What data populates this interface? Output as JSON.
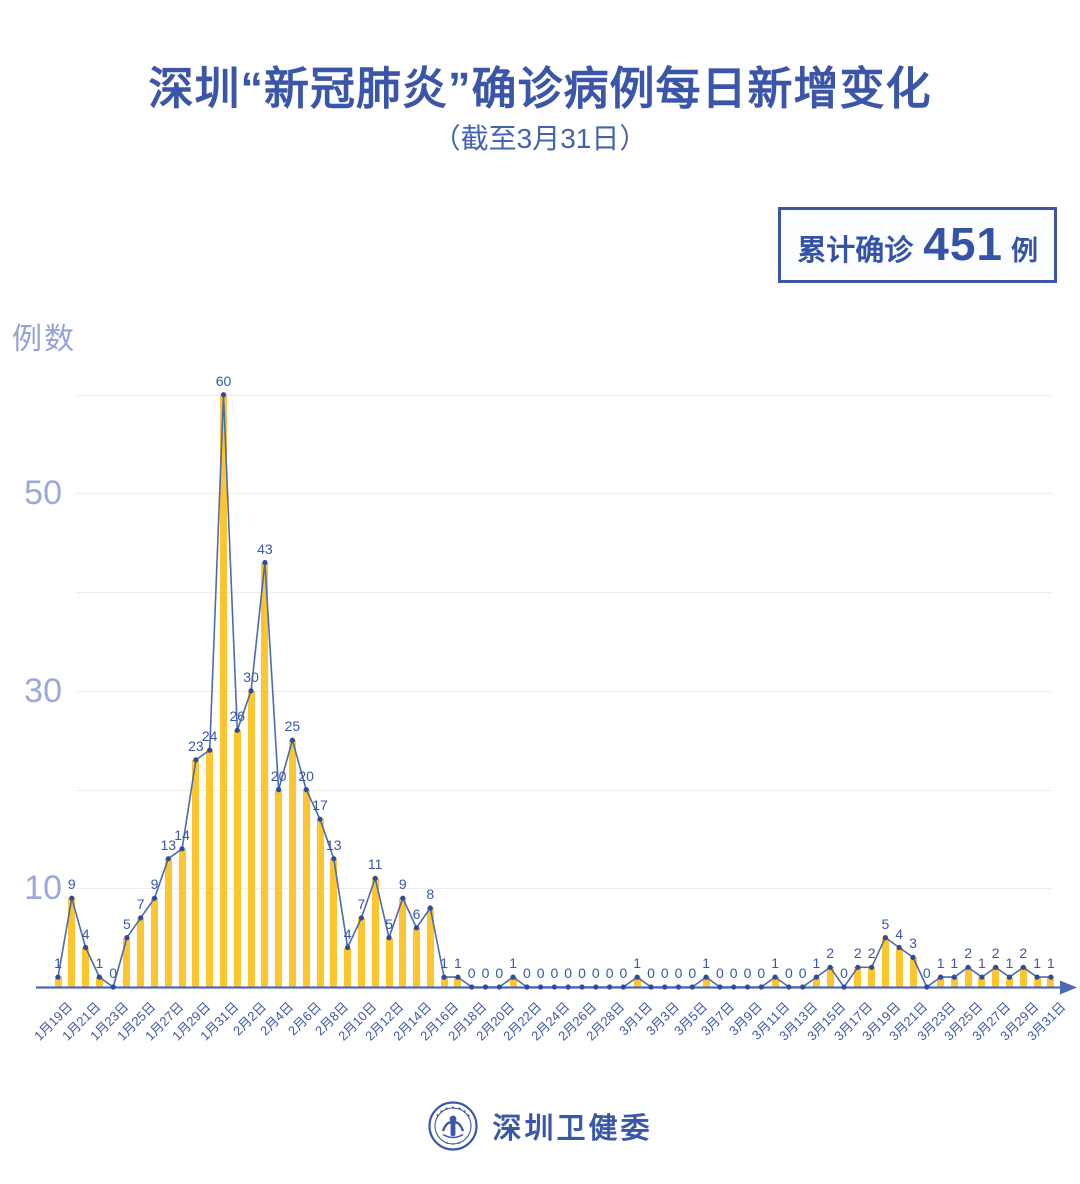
{
  "title": "深圳“新冠肺炎”确诊病例每日新增变化",
  "subtitle": "（截至3月31日）",
  "badge": {
    "prefix": "累计确诊",
    "value": "451",
    "unit": "例"
  },
  "footer": {
    "brand": "深圳卫健委",
    "logo": "shenzhen-health-commission-emblem"
  },
  "colors": {
    "title_blue": "#3b56a9",
    "bar_yellow": "#fdc52e",
    "line_blue": "#4c69b3",
    "point_blue": "#2e4b9e",
    "axis_light_blue": "#9aa9da",
    "gridline": "#ececf3"
  },
  "chart_data": {
    "type": "bar",
    "subtype": "bar-with-line-overlay",
    "title": "深圳“新冠肺炎”确诊病例每日新增变化（截至3月31日）",
    "xlabel": "",
    "ylabel": "例数",
    "ylim": [
      0,
      60
    ],
    "y_ticks_labeled": [
      10,
      30,
      50
    ],
    "gridline_values": [
      10,
      20,
      30,
      40,
      50,
      60
    ],
    "x_tick_label_step": 2,
    "legend": "none",
    "categories": [
      "1月19日",
      "1月20日",
      "1月21日",
      "1月22日",
      "1月23日",
      "1月24日",
      "1月25日",
      "1月26日",
      "1月27日",
      "1月28日",
      "1月29日",
      "1月30日",
      "1月31日",
      "2月1日",
      "2月2日",
      "2月3日",
      "2月4日",
      "2月5日",
      "2月6日",
      "2月7日",
      "2月8日",
      "2月9日",
      "2月10日",
      "2月11日",
      "2月12日",
      "2月13日",
      "2月14日",
      "2月15日",
      "2月16日",
      "2月17日",
      "2月18日",
      "2月19日",
      "2月20日",
      "2月21日",
      "2月22日",
      "2月23日",
      "2月24日",
      "2月25日",
      "2月26日",
      "2月27日",
      "2月28日",
      "2月29日",
      "3月1日",
      "3月2日",
      "3月3日",
      "3月4日",
      "3月5日",
      "3月6日",
      "3月7日",
      "3月8日",
      "3月9日",
      "3月10日",
      "3月11日",
      "3月12日",
      "3月13日",
      "3月14日",
      "3月15日",
      "3月16日",
      "3月17日",
      "3月18日",
      "3月19日",
      "3月20日",
      "3月21日",
      "3月22日",
      "3月23日",
      "3月24日",
      "3月25日",
      "3月26日",
      "3月27日",
      "3月28日",
      "3月29日",
      "3月30日",
      "3月31日"
    ],
    "values": [
      1,
      9,
      4,
      1,
      0,
      5,
      7,
      9,
      13,
      14,
      23,
      24,
      60,
      26,
      30,
      43,
      20,
      25,
      20,
      17,
      13,
      4,
      7,
      11,
      5,
      9,
      6,
      8,
      1,
      1,
      0,
      0,
      0,
      1,
      0,
      0,
      0,
      0,
      0,
      0,
      0,
      0,
      1,
      0,
      0,
      0,
      0,
      1,
      0,
      0,
      0,
      0,
      1,
      0,
      0,
      1,
      2,
      0,
      2,
      2,
      5,
      4,
      3,
      0,
      1,
      1,
      2,
      1,
      2,
      1,
      2,
      1,
      1
    ],
    "total": 451
  }
}
